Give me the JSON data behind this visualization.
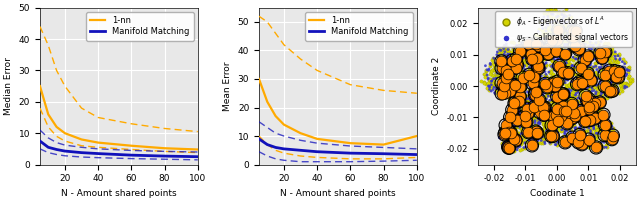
{
  "panel1": {
    "xlabel": "N - Amount shared points",
    "ylabel": "Median Error",
    "xlim": [
      5,
      100
    ],
    "ylim": [
      0,
      50
    ],
    "xticks": [
      20,
      40,
      60,
      80,
      100
    ],
    "yticks": [
      0,
      10,
      20,
      30,
      40,
      50
    ],
    "orange_solid": [
      [
        5,
        25
      ],
      [
        10,
        16
      ],
      [
        15,
        12
      ],
      [
        20,
        10
      ],
      [
        30,
        8
      ],
      [
        40,
        7
      ],
      [
        60,
        6
      ],
      [
        80,
        5.2
      ],
      [
        100,
        4.8
      ]
    ],
    "orange_dashed_upper": [
      [
        5,
        44
      ],
      [
        10,
        38
      ],
      [
        15,
        30
      ],
      [
        20,
        25
      ],
      [
        30,
        18
      ],
      [
        40,
        15
      ],
      [
        60,
        13
      ],
      [
        80,
        11.5
      ],
      [
        100,
        10.5
      ]
    ],
    "orange_dashed_lower": [
      [
        5,
        18
      ],
      [
        10,
        12
      ],
      [
        15,
        9
      ],
      [
        20,
        7.5
      ],
      [
        30,
        6
      ],
      [
        40,
        5.5
      ],
      [
        60,
        4.8
      ],
      [
        80,
        4.2
      ],
      [
        100,
        3.8
      ]
    ],
    "blue_solid": [
      [
        5,
        7.5
      ],
      [
        10,
        5.5
      ],
      [
        15,
        4.8
      ],
      [
        20,
        4.3
      ],
      [
        30,
        3.8
      ],
      [
        40,
        3.5
      ],
      [
        60,
        3.0
      ],
      [
        80,
        2.7
      ],
      [
        100,
        2.5
      ]
    ],
    "blue_dashed_upper": [
      [
        5,
        11
      ],
      [
        10,
        8.5
      ],
      [
        15,
        7.0
      ],
      [
        20,
        6.2
      ],
      [
        30,
        5.5
      ],
      [
        40,
        5.0
      ],
      [
        60,
        4.5
      ],
      [
        80,
        4.2
      ],
      [
        100,
        4.0
      ]
    ],
    "blue_dashed_lower": [
      [
        5,
        5.0
      ],
      [
        10,
        3.8
      ],
      [
        15,
        3.2
      ],
      [
        20,
        2.8
      ],
      [
        30,
        2.4
      ],
      [
        40,
        2.2
      ],
      [
        60,
        1.9
      ],
      [
        80,
        1.7
      ],
      [
        100,
        1.5
      ]
    ]
  },
  "panel2": {
    "xlabel": "N - Amount shared points",
    "ylabel": "Mean Error",
    "xlim": [
      5,
      100
    ],
    "ylim": [
      0,
      55
    ],
    "xticks": [
      20,
      40,
      60,
      80,
      100
    ],
    "yticks": [
      0,
      10,
      20,
      30,
      40,
      50
    ],
    "orange_solid": [
      [
        5,
        30
      ],
      [
        10,
        22
      ],
      [
        15,
        17
      ],
      [
        20,
        14
      ],
      [
        30,
        11
      ],
      [
        40,
        9
      ],
      [
        60,
        7.5
      ],
      [
        80,
        7
      ],
      [
        100,
        10
      ]
    ],
    "orange_dashed_upper": [
      [
        5,
        52
      ],
      [
        10,
        50
      ],
      [
        15,
        46
      ],
      [
        20,
        42
      ],
      [
        30,
        37
      ],
      [
        40,
        33
      ],
      [
        60,
        28
      ],
      [
        80,
        26
      ],
      [
        100,
        25
      ]
    ],
    "orange_dashed_lower": [
      [
        5,
        10
      ],
      [
        10,
        7
      ],
      [
        15,
        5
      ],
      [
        20,
        4
      ],
      [
        30,
        3
      ],
      [
        40,
        2.5
      ],
      [
        60,
        2
      ],
      [
        80,
        2
      ],
      [
        100,
        2.5
      ]
    ],
    "blue_solid": [
      [
        5,
        9
      ],
      [
        10,
        7
      ],
      [
        15,
        6
      ],
      [
        20,
        5.5
      ],
      [
        30,
        5
      ],
      [
        40,
        4.5
      ],
      [
        60,
        4
      ],
      [
        80,
        3.8
      ],
      [
        100,
        3.5
      ]
    ],
    "blue_dashed_upper": [
      [
        5,
        15
      ],
      [
        10,
        13
      ],
      [
        15,
        11
      ],
      [
        20,
        10
      ],
      [
        30,
        8.5
      ],
      [
        40,
        7.5
      ],
      [
        60,
        6.5
      ],
      [
        80,
        6
      ],
      [
        100,
        5.5
      ]
    ],
    "blue_dashed_lower": [
      [
        5,
        4.5
      ],
      [
        10,
        3
      ],
      [
        15,
        2
      ],
      [
        20,
        1.5
      ],
      [
        30,
        1
      ],
      [
        40,
        1
      ],
      [
        60,
        1
      ],
      [
        80,
        1.2
      ],
      [
        100,
        1.5
      ]
    ]
  },
  "panel3": {
    "xlabel": "Coodinate 1",
    "ylabel": "Coordinate 2",
    "xlim": [
      -0.025,
      0.025
    ],
    "ylim": [
      -0.025,
      0.025
    ],
    "xticks": [
      -0.02,
      -0.01,
      0.0,
      0.01,
      0.02
    ],
    "yticks": [
      -0.02,
      -0.01,
      0.0,
      0.01,
      0.02
    ],
    "legend_label1": "$\\phi_A$ - Eigenvectors of $L^A$",
    "legend_label2": "$\\psi_S$ - Calibrated signal vectors",
    "yellow_color": "#d4d400",
    "blue_color": "#3333cc",
    "black_color": "#111111"
  },
  "orange_color": "#ffaa00",
  "blue_color": "#1111bb",
  "legend_labels": [
    "1-nn",
    "Manifold Matching"
  ],
  "bg_color": "#e8e8e8"
}
